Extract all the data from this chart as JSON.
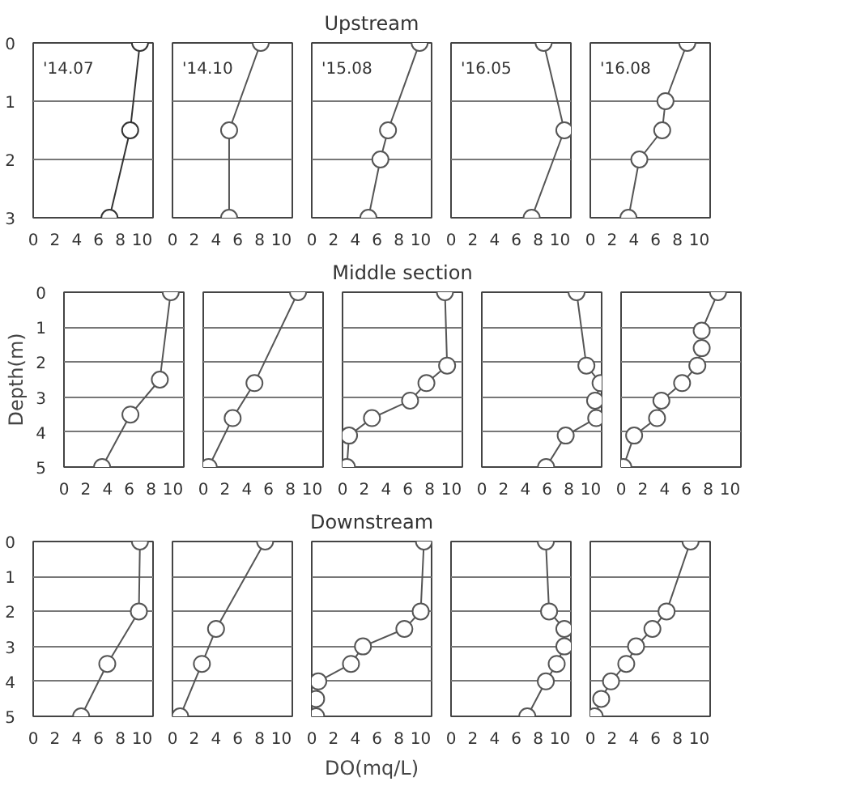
{
  "chart_data": [
    {
      "type": "line",
      "annotations": [
        "'14.07"
      ],
      "xlim": [
        0,
        11
      ],
      "xticks": [
        0,
        2,
        4,
        6,
        8,
        10
      ],
      "ylim": [
        3,
        0
      ],
      "yticks": [
        0,
        1,
        2,
        3
      ],
      "grid": "y",
      "marker": "circle",
      "line_style": "solid",
      "series": [
        {
          "color": "#333333",
          "x": [
            9.8,
            8.9,
            7.0
          ],
          "values": [
            0,
            1.5,
            3
          ]
        }
      ]
    },
    {
      "type": "line",
      "annotations": [
        "'14.10"
      ],
      "xlim": [
        0,
        11
      ],
      "xticks": [
        0,
        2,
        4,
        6,
        8,
        10
      ],
      "ylim": [
        3,
        0
      ],
      "yticks": [
        0,
        1,
        2,
        3
      ],
      "grid": "y",
      "marker": "circle",
      "line_style": "solid",
      "tick_labels": "x",
      "series": [
        {
          "color": "#555555",
          "x": [
            8.1,
            5.2,
            5.2
          ],
          "values": [
            0,
            1.5,
            3
          ]
        }
      ]
    },
    {
      "type": "line",
      "title": "Upstream",
      "annotations": [
        "'15.08"
      ],
      "xlim": [
        0,
        11
      ],
      "xticks": [
        0,
        2,
        4,
        6,
        8,
        10
      ],
      "ylim": [
        3,
        0
      ],
      "yticks": [
        0,
        1,
        2,
        3
      ],
      "grid": "y",
      "marker": "circle",
      "line_style": "solid",
      "tick_labels": "x",
      "series": [
        {
          "color": "#555555",
          "x": [
            9.9,
            7.0,
            6.3,
            5.2
          ],
          "values": [
            0,
            1.5,
            2,
            3
          ]
        }
      ]
    },
    {
      "type": "line",
      "annotations": [
        "'16.05"
      ],
      "xlim": [
        0,
        11
      ],
      "xticks": [
        0,
        2,
        4,
        6,
        8,
        10
      ],
      "ylim": [
        3,
        0
      ],
      "yticks": [
        0,
        1,
        2,
        3
      ],
      "grid": "y",
      "marker": "circle",
      "line_style": "solid",
      "tick_labels": "x",
      "series": [
        {
          "color": "#555555",
          "x": [
            8.5,
            10.4,
            7.4
          ],
          "values": [
            0,
            1.5,
            3
          ]
        }
      ]
    },
    {
      "type": "line",
      "annotations": [
        "'16.08"
      ],
      "xlim": [
        0,
        11
      ],
      "xticks": [
        0,
        2,
        4,
        6,
        8,
        10
      ],
      "ylim": [
        3,
        0
      ],
      "yticks": [
        0,
        1,
        2,
        3
      ],
      "grid": "y",
      "marker": "circle",
      "line_style": "solid",
      "tick_labels": "x",
      "series": [
        {
          "color": "#555555",
          "x": [
            8.9,
            6.9,
            6.6,
            4.5,
            3.5
          ],
          "values": [
            0,
            1,
            1.5,
            2,
            3
          ]
        }
      ]
    },
    {
      "type": "line",
      "ylabel": "Depth(m)",
      "xlim": [
        0,
        11
      ],
      "xticks": [
        0,
        2,
        4,
        6,
        8,
        10
      ],
      "ylim": [
        5,
        0
      ],
      "yticks": [
        0,
        1,
        2,
        3,
        4,
        5
      ],
      "grid": "y",
      "marker": "circle",
      "line_style": "solid",
      "series": [
        {
          "color": "#555555",
          "x": [
            9.8,
            8.8,
            6.1,
            3.5
          ],
          "values": [
            0,
            2.5,
            3.5,
            5
          ]
        }
      ]
    },
    {
      "type": "line",
      "xlim": [
        0,
        11
      ],
      "xticks": [
        0,
        2,
        4,
        6,
        8,
        10
      ],
      "ylim": [
        5,
        0
      ],
      "yticks": [
        0,
        1,
        2,
        3,
        4,
        5
      ],
      "grid": "y",
      "marker": "circle",
      "line_style": "solid",
      "tick_labels": "x",
      "series": [
        {
          "color": "#555555",
          "x": [
            8.7,
            4.7,
            2.7,
            0.5
          ],
          "values": [
            0,
            2.6,
            3.6,
            5
          ]
        }
      ]
    },
    {
      "type": "line",
      "title": "Middle section",
      "xlim": [
        0,
        11
      ],
      "xticks": [
        0,
        2,
        4,
        6,
        8,
        10
      ],
      "ylim": [
        5,
        0
      ],
      "yticks": [
        0,
        1,
        2,
        3,
        4,
        5
      ],
      "grid": "y",
      "marker": "circle",
      "line_style": "solid",
      "tick_labels": "x",
      "series": [
        {
          "color": "#555555",
          "x": [
            9.4,
            9.6,
            7.7,
            6.2,
            2.7,
            0.6,
            0.4
          ],
          "values": [
            0,
            2.1,
            2.6,
            3.1,
            3.6,
            4.1,
            5
          ]
        }
      ]
    },
    {
      "type": "line",
      "xlim": [
        0,
        11
      ],
      "xticks": [
        0,
        2,
        4,
        6,
        8,
        10
      ],
      "ylim": [
        5,
        0
      ],
      "yticks": [
        0,
        1,
        2,
        3,
        4,
        5
      ],
      "grid": "y",
      "marker": "circle",
      "line_style": "solid",
      "tick_labels": "x",
      "series": [
        {
          "color": "#555555",
          "x": [
            8.7,
            9.6,
            10.9,
            10.4,
            10.5,
            7.7,
            5.9
          ],
          "values": [
            0,
            2.1,
            2.6,
            3.1,
            3.6,
            4.1,
            5
          ]
        }
      ]
    },
    {
      "type": "line",
      "xlim": [
        0,
        11
      ],
      "xticks": [
        0,
        2,
        4,
        6,
        8,
        10
      ],
      "ylim": [
        5,
        0
      ],
      "yticks": [
        0,
        1,
        2,
        3,
        4,
        5
      ],
      "grid": "y",
      "marker": "circle",
      "line_style": "solid",
      "tick_labels": "x",
      "series": [
        {
          "color": "#555555",
          "x": [
            8.9,
            7.4,
            7.4,
            7.0,
            5.6,
            3.7,
            3.3,
            1.2,
            0.2
          ],
          "values": [
            0,
            1.1,
            1.6,
            2.1,
            2.6,
            3.1,
            3.6,
            4.1,
            5
          ]
        }
      ]
    },
    {
      "type": "line",
      "xlim": [
        0,
        11
      ],
      "xticks": [
        0,
        2,
        4,
        6,
        8,
        10
      ],
      "ylim": [
        5,
        0
      ],
      "yticks": [
        0,
        1,
        2,
        3,
        4,
        5
      ],
      "grid": "y",
      "marker": "circle",
      "line_style": "solid",
      "series": [
        {
          "color": "#555555",
          "x": [
            9.8,
            9.7,
            6.8,
            4.4
          ],
          "values": [
            0,
            2,
            3.5,
            5
          ]
        }
      ]
    },
    {
      "type": "line",
      "xlim": [
        0,
        11
      ],
      "xticks": [
        0,
        2,
        4,
        6,
        8,
        10
      ],
      "ylim": [
        5,
        0
      ],
      "yticks": [
        0,
        1,
        2,
        3,
        4,
        5
      ],
      "grid": "y",
      "marker": "circle",
      "line_style": "solid",
      "tick_labels": "x",
      "series": [
        {
          "color": "#555555",
          "x": [
            8.5,
            4.0,
            2.7,
            0.7
          ],
          "values": [
            0,
            2.5,
            3.5,
            5
          ]
        }
      ]
    },
    {
      "type": "line",
      "title": "Downstream",
      "xlabel": "DO(mq/L)",
      "xlim": [
        0,
        11
      ],
      "xticks": [
        0,
        2,
        4,
        6,
        8,
        10
      ],
      "ylim": [
        5,
        0
      ],
      "yticks": [
        0,
        1,
        2,
        3,
        4,
        5
      ],
      "grid": "y",
      "marker": "circle",
      "line_style": "solid",
      "tick_labels": "x",
      "series": [
        {
          "color": "#555555",
          "x": [
            10.3,
            10.0,
            8.5,
            4.7,
            3.6,
            0.6,
            0.4,
            0.4
          ],
          "values": [
            0,
            2,
            2.5,
            3,
            3.5,
            4,
            4.5,
            5
          ]
        }
      ]
    },
    {
      "type": "line",
      "xlim": [
        0,
        11
      ],
      "xticks": [
        0,
        2,
        4,
        6,
        8,
        10
      ],
      "ylim": [
        5,
        0
      ],
      "yticks": [
        0,
        1,
        2,
        3,
        4,
        5
      ],
      "grid": "y",
      "marker": "circle",
      "line_style": "solid",
      "tick_labels": "x",
      "series": [
        {
          "color": "#555555",
          "x": [
            8.7,
            9.0,
            10.4,
            10.4,
            9.7,
            8.7,
            7.0
          ],
          "values": [
            0,
            2,
            2.5,
            3,
            3.5,
            4,
            5
          ]
        }
      ]
    },
    {
      "type": "line",
      "xlim": [
        0,
        11
      ],
      "xticks": [
        0,
        2,
        4,
        6,
        8,
        10
      ],
      "ylim": [
        5,
        0
      ],
      "yticks": [
        0,
        1,
        2,
        3,
        4,
        5
      ],
      "grid": "y",
      "marker": "circle",
      "line_style": "solid",
      "tick_labels": "x",
      "series": [
        {
          "color": "#555555",
          "x": [
            9.2,
            7.0,
            5.7,
            4.2,
            3.3,
            1.9,
            1.0,
            0.4
          ],
          "values": [
            0,
            2,
            2.5,
            3,
            3.5,
            4,
            4.5,
            5
          ]
        }
      ]
    }
  ]
}
